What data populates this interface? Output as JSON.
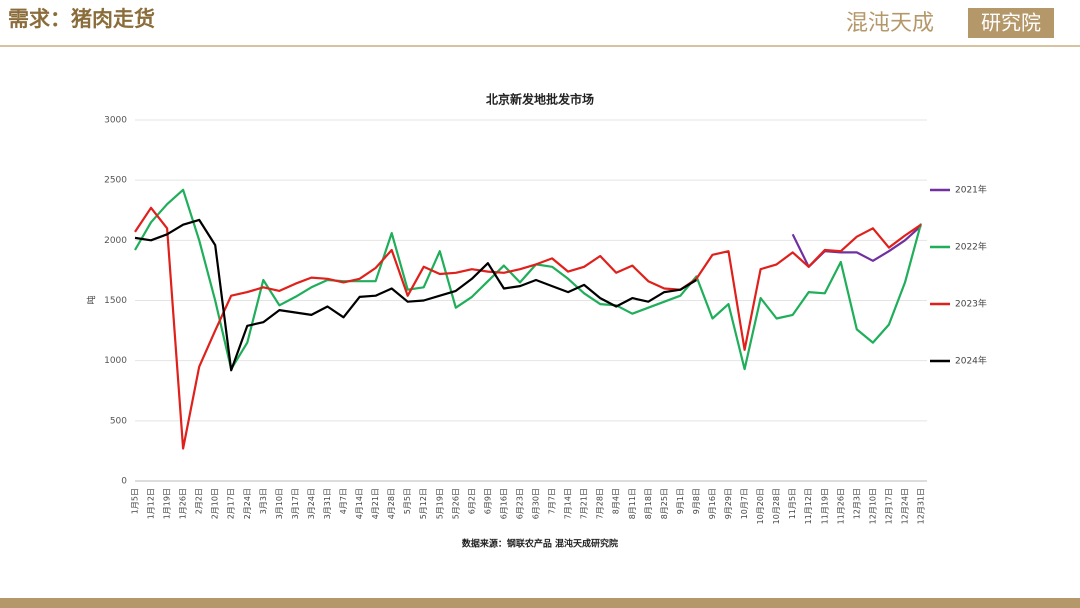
{
  "header": {
    "title": "需求：猪肉走货",
    "logo_main": "混沌天成",
    "logo_box": "研究院"
  },
  "source": "数据来源：钢联农产品 混沌天成研究院",
  "chart_data": {
    "type": "line",
    "title": "北京新发地批发市场",
    "y_label": "吨",
    "categories": [
      "1月5日",
      "1月12日",
      "1月19日",
      "1月26日",
      "2月2日",
      "2月10日",
      "2月17日",
      "2月24日",
      "3月3日",
      "3月10日",
      "3月17日",
      "3月24日",
      "3月31日",
      "4月7日",
      "4月14日",
      "4月21日",
      "4月28日",
      "5月5日",
      "5月12日",
      "5月19日",
      "5月26日",
      "6月2日",
      "6月9日",
      "6月16日",
      "6月23日",
      "6月30日",
      "7月7日",
      "7月14日",
      "7月21日",
      "7月28日",
      "8月4日",
      "8月11日",
      "8月18日",
      "8月25日",
      "9月1日",
      "9月8日",
      "9月16日",
      "9月29日",
      "10月7日",
      "10月20日",
      "10月28日",
      "11月5日",
      "11月12日",
      "11月19日",
      "11月26日",
      "12月3日",
      "12月10日",
      "12月17日",
      "12月24日",
      "12月31日"
    ],
    "ylim": [
      0,
      3000
    ],
    "yticks": [
      0,
      500,
      1000,
      1500,
      2000,
      2500,
      3000
    ],
    "grid": true,
    "legend": "right",
    "series": [
      {
        "name": "2021年",
        "color": "#7030a0",
        "values": [
          null,
          null,
          null,
          null,
          null,
          null,
          null,
          null,
          null,
          null,
          null,
          null,
          null,
          null,
          null,
          null,
          null,
          null,
          null,
          null,
          null,
          null,
          null,
          null,
          null,
          null,
          null,
          null,
          null,
          null,
          null,
          null,
          null,
          null,
          null,
          null,
          null,
          null,
          null,
          null,
          null,
          2050,
          1780,
          1910,
          1900,
          1900,
          1830,
          1910,
          2000,
          2120
        ]
      },
      {
        "name": "2022年",
        "color": "#1fae5a",
        "values": [
          1920,
          2150,
          2300,
          2420,
          2000,
          1500,
          930,
          1150,
          1670,
          1460,
          1530,
          1610,
          1670,
          1660,
          1660,
          1660,
          2060,
          1590,
          1610,
          1910,
          1440,
          1530,
          1660,
          1790,
          1650,
          1800,
          1780,
          1680,
          1560,
          1470,
          1460,
          1390,
          1440,
          1490,
          1540,
          1700,
          1350,
          1470,
          930,
          1520,
          1350,
          1380,
          1570,
          1560,
          1820,
          1260,
          1150,
          1300,
          1650,
          2140
        ]
      },
      {
        "name": "2023年",
        "color": "#e0201b",
        "values": [
          2070,
          2270,
          2100,
          270,
          950,
          1250,
          1540,
          1570,
          1610,
          1580,
          1640,
          1690,
          1680,
          1650,
          1680,
          1770,
          1920,
          1540,
          1780,
          1720,
          1730,
          1760,
          1740,
          1730,
          1760,
          1800,
          1850,
          1740,
          1780,
          1870,
          1730,
          1790,
          1660,
          1600,
          1590,
          1680,
          1880,
          1910,
          1090,
          1760,
          1800,
          1900,
          1780,
          1920,
          1910,
          2030,
          2100,
          1940,
          2040,
          2130
        ]
      },
      {
        "name": "2024年",
        "color": "#000000",
        "values": [
          2020,
          2000,
          2050,
          2130,
          2170,
          1960,
          920,
          1290,
          1320,
          1420,
          1400,
          1380,
          1450,
          1360,
          1530,
          1540,
          1600,
          1490,
          1500,
          1540,
          1580,
          1680,
          1810,
          1600,
          1620,
          1670,
          1620,
          1570,
          1630,
          1520,
          1450,
          1520,
          1490,
          1570,
          1590,
          1670,
          null,
          null,
          null,
          null,
          null,
          null,
          null,
          null,
          null,
          null,
          null,
          null,
          null,
          null
        ]
      }
    ]
  }
}
